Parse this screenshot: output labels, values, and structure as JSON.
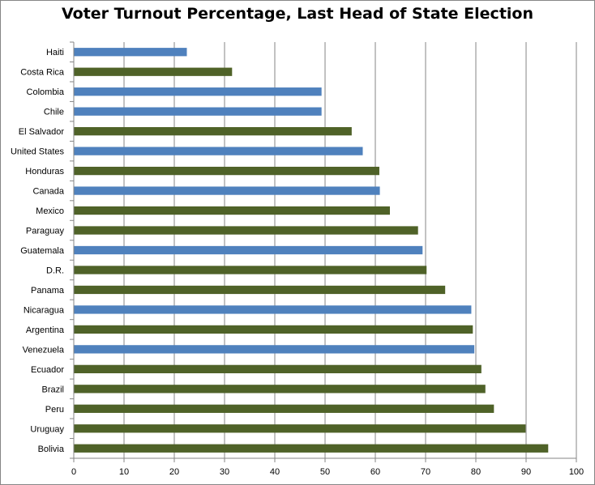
{
  "chart_data": {
    "type": "bar",
    "orientation": "horizontal",
    "title": "Voter Turnout Percentage, Last Head of State Election",
    "xlabel": "",
    "ylabel": "",
    "xlim": [
      0,
      100
    ],
    "xticks": [
      "0",
      "10",
      "20",
      "30",
      "40",
      "50",
      "60",
      "70",
      "80",
      "90",
      "100"
    ],
    "grid": "vertical",
    "legend": "none",
    "colors": {
      "blue": "#4f81bd",
      "green": "#4f6228"
    },
    "categories": [
      "Haiti",
      "Costa Rica",
      "Colombia",
      "Chile",
      "El Salvador",
      "United States",
      "Honduras",
      "Canada",
      "Mexico",
      "Paraguay",
      "Guatemala",
      "D.R.",
      "Panama",
      "Nicaragua",
      "Argentina",
      "Venezuela",
      "Ecuador",
      "Brazil",
      "Peru",
      "Uruguay",
      "Bolivia"
    ],
    "values": [
      22.5,
      31.5,
      49.3,
      49.3,
      55.3,
      57.5,
      60.8,
      60.9,
      62.9,
      68.5,
      69.4,
      70.2,
      73.9,
      79.1,
      79.4,
      79.7,
      81.1,
      81.9,
      83.6,
      89.9,
      94.4
    ],
    "bar_colors": [
      "blue",
      "green",
      "blue",
      "blue",
      "green",
      "blue",
      "green",
      "blue",
      "green",
      "green",
      "blue",
      "green",
      "green",
      "blue",
      "green",
      "blue",
      "green",
      "green",
      "green",
      "green",
      "green"
    ]
  }
}
